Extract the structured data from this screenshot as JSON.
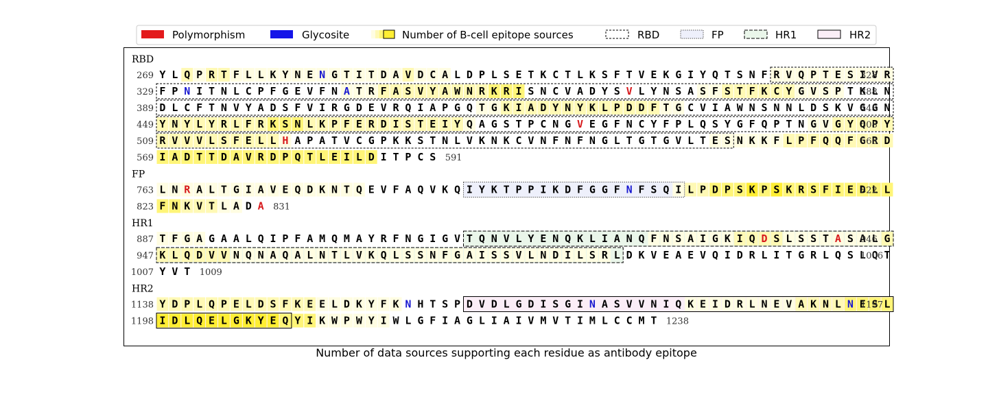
{
  "legend": {
    "polymorphism": {
      "label": "Polymorphism",
      "color": "#e31a1c"
    },
    "glycosite": {
      "label": "Glycosite",
      "color": "#1515e8"
    },
    "epitope": {
      "label": "Number of B-cell epitope sources",
      "color": "#ffee33"
    },
    "rbd": {
      "label": "RBD"
    },
    "fp": {
      "label": "FP"
    },
    "hr1": {
      "label": "HR1"
    },
    "hr2": {
      "label": "HR2"
    }
  },
  "colors": {
    "polymorphism": "#d7191c",
    "glycosite": "#1a1ad0",
    "text": "#000000",
    "epitope_max": "#ffee33",
    "fp_fill": "#eef0fb",
    "hr1_fill": "#eaf6ea",
    "hr2_fill": "#fbeef7"
  },
  "caption": "Number of data sources supporting each residue as antibody epitope",
  "sections": [
    {
      "name": "RBD",
      "rows": [
        {
          "start": 269,
          "end": 328,
          "seq": "YLQPRTFLLKYNENGTITDAVDCALDPLSETKCTLKSFTVEKGIYQTSNFRVQPTESIVR",
          "glyco": [
            14
          ],
          "poly": [],
          "region": "rbd",
          "box": [
            51,
            60
          ],
          "ep": "002122111111111111112111000000000000000000000000001111111111"
        },
        {
          "start": 329,
          "end": 388,
          "seq": "FPNITNLCPFGEVFNATRFASVYAWNRKRISNCVADYSVLYNSASFSTFKCYGVSPTKLN",
          "glyco": [
            3,
            16
          ],
          "poly": [
            39
          ],
          "region": "rbd",
          "box": [
            1,
            60
          ],
          "ep": "000000000000000111222222222333000000000000001122222211110000"
        },
        {
          "start": 389,
          "end": 448,
          "seq": "DLCFTNVYADSFVIRGDEVRQIAPGQTGKIADYNYKLPDDFTGCVIAWNSNNLDSKVGGN",
          "glyco": [],
          "poly": [],
          "region": "rbd",
          "box": [
            1,
            60
          ],
          "ep": "000000000000000000000000001122222222222221100000000000000000"
        },
        {
          "start": 449,
          "end": 508,
          "seq": "YNYLYRLFRKSNLKPFERDISTEIYQAGSTPCNGVEGFNCYFPLQSYGFQPTNGVGYQPY",
          "glyco": [],
          "poly": [
            35
          ],
          "region": "rbd",
          "box": [
            1,
            60
          ],
          "ep": "222222222333222222222222210000000000000000000000000001122222"
        },
        {
          "start": 509,
          "end": 568,
          "seq": "RVVVLSFELLHAPATVCGPKKSTNLVKNKCVNFNFNGLTGTGVLTESNKKFLPFQQFGRD",
          "glyco": [],
          "poly": [
            11
          ],
          "region": "rbd",
          "box": [
            1,
            47
          ],
          "ep": "222222222210000000000000000000000000000000000111111222222222"
        },
        {
          "start": 569,
          "end": 591,
          "seq": "IADTTDAVRDPQTLEILDITPCS",
          "glyco": [],
          "poly": [],
          "region": null,
          "box": null,
          "ep": "33333333333333333300000"
        }
      ]
    },
    {
      "name": "FP",
      "rows": [
        {
          "start": 763,
          "end": 822,
          "seq": "LNRALTGIAVEQDKNTQEVFAQVKQIYKTPPIKDFGGFNFSQILPDPSKPSKRSFIEDLL",
          "glyco": [
            39
          ],
          "poly": [
            3
          ],
          "region": "fp",
          "box": [
            26,
            43
          ],
          "ep": "111111111111111110000000000000000000000000122333434333333333"
        },
        {
          "start": 823,
          "end": 831,
          "seq": "FNKVTLADA",
          "glyco": [],
          "poly": [
            9
          ],
          "region": null,
          "box": null,
          "ep": "332221100"
        }
      ]
    },
    {
      "name": "HR1",
      "rows": [
        {
          "start": 887,
          "end": 946,
          "seq": "TFGAGAALQIPFAMQMAYRFNGIGVTQNVLYENQKLIANQFNSAIGKIQDSLSSTASALG",
          "glyco": [],
          "poly": [
            50,
            56
          ],
          "region": "hr1",
          "box": [
            26,
            60
          ],
          "ep": "111100000000000000000000000000000000000011111112222111111112"
        },
        {
          "start": 947,
          "end": 1006,
          "seq": "KLQDVVNQNAQALNTLVKQLSSNFGAISSVLNDILSRLDKVEAEVQIDRLITGRLQSLQT",
          "glyco": [],
          "poly": [],
          "region": "hr1",
          "box": [
            1,
            38
          ],
          "ep": "222222111111111111111111111111111111100000000000000000000000"
        },
        {
          "start": 1007,
          "end": 1009,
          "seq": "YVT",
          "glyco": [],
          "poly": [],
          "region": null,
          "box": null,
          "ep": "000"
        }
      ]
    },
    {
      "name": "HR2",
      "rows": [
        {
          "start": 1138,
          "end": 1197,
          "seq": "YDPLQPELDSFKEELDKYFKNHTSPDVDLGDISGINASVVNIQKEIDRLNEVAKNLNESL",
          "glyco": [
            21,
            36,
            57
          ],
          "poly": [],
          "region": "hr2",
          "box": [
            26,
            60
          ],
          "ep": "222222222222211111110000000000000000000000011111111122223333"
        },
        {
          "start": 1198,
          "end": 1238,
          "seq": "IDLQELGKYEQYIKWPWYIWLGFIAGLIAIVMVTIMLCCMT",
          "glyco": [],
          "poly": [],
          "region": "hr2",
          "box": [
            1,
            11
          ],
          "ep": "44444444443331111110000000000000000000000"
        }
      ]
    }
  ]
}
